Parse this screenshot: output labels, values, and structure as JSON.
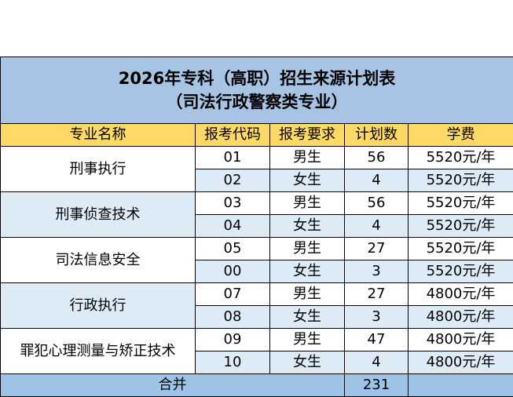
{
  "title": [
    "2026年专科（高职）招生来源计划表",
    "（司法行政警察类专业）"
  ],
  "header": [
    "专业名称",
    "报考代码",
    "报考要求",
    "计划数",
    "学费"
  ],
  "groups": [
    {
      "major": "刑事执行",
      "rows": [
        [
          "01",
          "男生",
          56,
          "5520元/年"
        ],
        [
          "02",
          "女生",
          4,
          "5520元/年"
        ]
      ]
    },
    {
      "major": "刑事侦查技术",
      "rows": [
        [
          "03",
          "男生",
          56,
          "5520元/年"
        ],
        [
          "04",
          "女生",
          4,
          "5520元/年"
        ]
      ]
    },
    {
      "major": "司法信息安全",
      "rows": [
        [
          "05",
          "男生",
          27,
          "5520元/年"
        ],
        [
          "00",
          "女生",
          3,
          "5520元/年"
        ]
      ]
    },
    {
      "major": "行政执行",
      "rows": [
        [
          "07",
          "男生",
          27,
          "4800元/年"
        ],
        [
          "08",
          "女生",
          3,
          "4800元/年"
        ]
      ]
    },
    {
      "major": "罪犯心理测量与矫正技术",
      "rows": [
        [
          "09",
          "男生",
          47,
          "4800元/年"
        ],
        [
          "10",
          "女生",
          4,
          "4800元/年"
        ]
      ]
    }
  ],
  "total": {
    "label": "合并",
    "count": 231
  }
}
